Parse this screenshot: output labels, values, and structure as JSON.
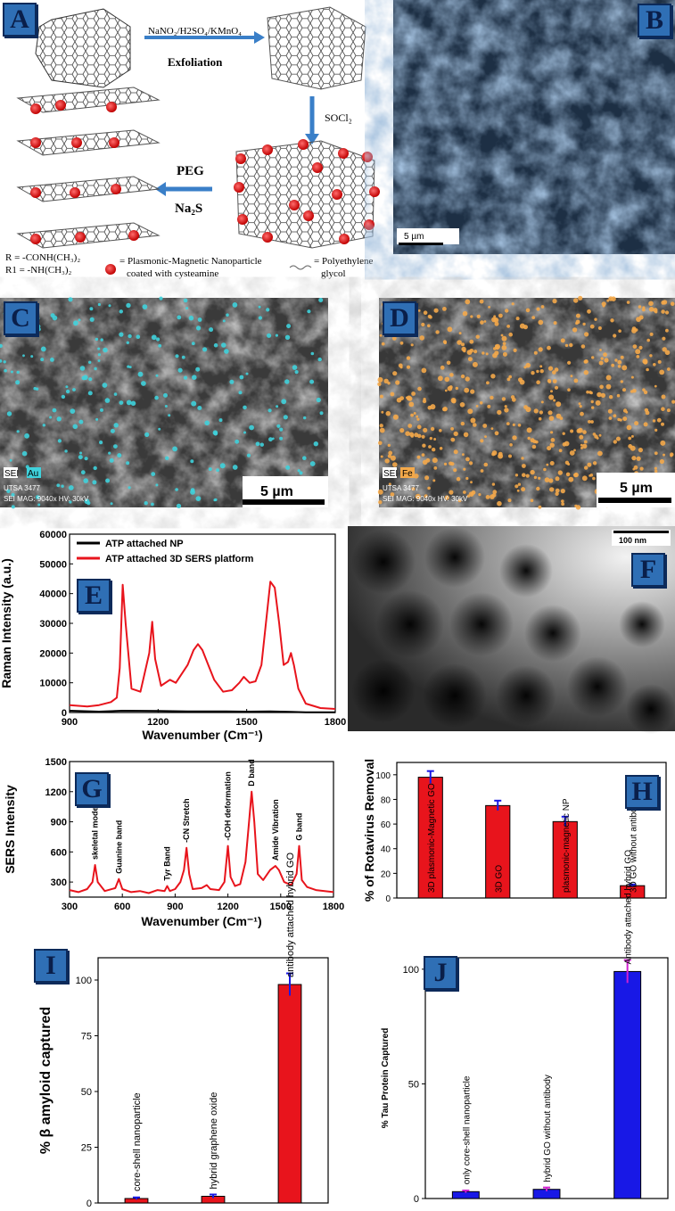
{
  "panels": {
    "A": {
      "label": "A",
      "reagent_top": "NaNO₂/H2SO₄/KMnO₄",
      "step_exfoliation": "Exfoliation",
      "reagent_socl2": "SOCl₂",
      "reagent_peg": "PEG",
      "reagent_na2s": "Na₂S",
      "legend_r": "R  =  -CONH(CH₃)₂",
      "legend_r1": "R1 =  -NH(CH₃)₂",
      "legend_np_1": "= Plasmonic-Magnetic Nanoparticle",
      "legend_np_2": "coated with cysteamine",
      "legend_peg_1": "= Polyethylene",
      "legend_peg_2": "glycol"
    },
    "B": {
      "label": "B",
      "scale": "5 µm"
    },
    "C": {
      "label": "C",
      "tag_sei": "SEI",
      "tag_el": "Au",
      "meta_1": "UTSA 3477",
      "meta_2": "SEI  MAG: 9040x  HV: 30kV",
      "scale": "5 µm"
    },
    "D": {
      "label": "D",
      "tag_sei": "SEI",
      "tag_el": "Fe",
      "meta_1": "UTSA 3477",
      "meta_2": "SEI  MAG: 9040x  HV: 30kV",
      "scale": "5 µm"
    },
    "F": {
      "label": "F",
      "scale": "100 nm"
    },
    "E": {
      "label": "E"
    },
    "G": {
      "label": "G"
    },
    "H": {
      "label": "H"
    },
    "I": {
      "label": "I"
    },
    "J": {
      "label": "J"
    }
  },
  "colors": {
    "badge": "#2f6fb5",
    "red": "#e8141c",
    "blue": "#1818e6",
    "sem_blue": "#5a86b8",
    "au": "#3fd2dc",
    "fe": "#f4a94a"
  },
  "chart_data": [
    {
      "id": "E",
      "type": "line",
      "xlabel": "Wavenumber (Cm⁻¹)",
      "ylabel": "Raman Intensity (a.u.)",
      "xlim": [
        900,
        1800
      ],
      "ylim": [
        0,
        60000
      ],
      "xticks": [
        900,
        1200,
        1500,
        1800
      ],
      "yticks": [
        0,
        10000,
        20000,
        30000,
        40000,
        50000,
        60000
      ],
      "legend": "top-left",
      "series": [
        {
          "name": "ATP attached NP",
          "color": "#000000",
          "x": [
            900,
            1000,
            1080,
            1200,
            1300,
            1400,
            1500,
            1580,
            1650,
            1700,
            1800
          ],
          "y": [
            600,
            300,
            600,
            500,
            400,
            400,
            300,
            400,
            200,
            100,
            100
          ]
        },
        {
          "name": "ATP attached 3D SERS platform",
          "color": "#e8141c",
          "x": [
            900,
            960,
            1000,
            1040,
            1060,
            1070,
            1080,
            1090,
            1110,
            1140,
            1170,
            1180,
            1190,
            1210,
            1240,
            1260,
            1280,
            1300,
            1320,
            1335,
            1350,
            1370,
            1390,
            1420,
            1450,
            1475,
            1490,
            1510,
            1530,
            1550,
            1565,
            1580,
            1595,
            1610,
            1625,
            1640,
            1650,
            1660,
            1675,
            1700,
            1750,
            1800
          ],
          "y": [
            2500,
            2000,
            2500,
            3500,
            5000,
            15000,
            43000,
            30000,
            8000,
            7000,
            20000,
            30500,
            18000,
            9000,
            11000,
            10000,
            13000,
            16000,
            21000,
            23000,
            21000,
            16000,
            11000,
            7000,
            7500,
            10000,
            12000,
            10000,
            10500,
            16000,
            30000,
            44000,
            42000,
            30000,
            16000,
            17000,
            20000,
            16000,
            8000,
            3000,
            1500,
            1200
          ]
        }
      ]
    },
    {
      "id": "G",
      "type": "line",
      "xlabel": "Wavenumber (Cm⁻¹)",
      "ylabel": "SERS Intensity",
      "xlim": [
        300,
        1800
      ],
      "ylim": [
        150,
        1500
      ],
      "xticks": [
        300,
        600,
        900,
        1200,
        1500,
        1800
      ],
      "yticks": [
        300,
        600,
        900,
        1200,
        1500
      ],
      "series": [
        {
          "name": "",
          "color": "#e8141c",
          "x": [
            300,
            350,
            400,
            430,
            445,
            460,
            500,
            560,
            580,
            600,
            650,
            700,
            750,
            800,
            840,
            855,
            870,
            900,
            930,
            950,
            965,
            980,
            1000,
            1050,
            1080,
            1100,
            1150,
            1180,
            1200,
            1215,
            1240,
            1270,
            1300,
            1320,
            1335,
            1350,
            1370,
            1400,
            1440,
            1470,
            1490,
            1520,
            1560,
            1590,
            1605,
            1620,
            1650,
            1700,
            1750,
            1800
          ],
          "y": [
            220,
            200,
            230,
            300,
            470,
            300,
            210,
            240,
            330,
            230,
            200,
            210,
            190,
            220,
            210,
            260,
            210,
            230,
            300,
            420,
            640,
            380,
            230,
            240,
            270,
            230,
            220,
            300,
            660,
            350,
            260,
            280,
            500,
            900,
            1200,
            900,
            380,
            320,
            420,
            460,
            420,
            300,
            270,
            380,
            660,
            320,
            250,
            220,
            210,
            200
          ]
        }
      ],
      "annotations": [
        {
          "text": "skeletal modes",
          "x": 445
        },
        {
          "text": "Guanine band",
          "x": 580
        },
        {
          "text": "Tyr Band",
          "x": 855
        },
        {
          "text": "-CN Stretch",
          "x": 965
        },
        {
          "text": "-COH deformation",
          "x": 1200
        },
        {
          "text": "D band",
          "x": 1335
        },
        {
          "text": "Amide Vibration",
          "x": 1470
        },
        {
          "text": "G band",
          "x": 1605
        }
      ]
    },
    {
      "id": "H",
      "type": "bar",
      "ylabel": "% of Rotavirus Removal",
      "ylim": [
        0,
        110
      ],
      "yticks": [
        0,
        20,
        40,
        60,
        80,
        100
      ],
      "categories": [
        "3D plasmonic-Magnetic GO",
        "3D GO",
        "plasmonic-magnetic NP",
        "3D GO without antibody"
      ],
      "values": [
        98,
        75,
        62,
        10
      ],
      "errors": [
        5,
        4,
        4,
        1
      ],
      "color": "#e8141c",
      "error_color": "#1818e6"
    },
    {
      "id": "I",
      "type": "bar",
      "ylabel": "% β amyloid captured",
      "ylim": [
        0,
        110
      ],
      "yticks": [
        0,
        25,
        50,
        75,
        100
      ],
      "categories": [
        "core-shell nanoparticle",
        "hybrid graphene oxide",
        "antibody attached hybrid GO"
      ],
      "values": [
        2,
        3,
        98
      ],
      "errors": [
        0.5,
        0.8,
        5
      ],
      "color": "#e8141c",
      "error_color": "#1818e6"
    },
    {
      "id": "J",
      "type": "bar",
      "ylabel": "% Tau Protein Captured",
      "ylim": [
        0,
        105
      ],
      "yticks": [
        0,
        50,
        100
      ],
      "categories": [
        "only core-shell nanoparticle",
        "hybrid GO without antibody",
        "Antibody attached hybrid GO"
      ],
      "values": [
        3,
        4,
        99
      ],
      "errors": [
        0.5,
        0.8,
        5
      ],
      "color": "#1818e6",
      "error_color": "#d020d0"
    }
  ]
}
